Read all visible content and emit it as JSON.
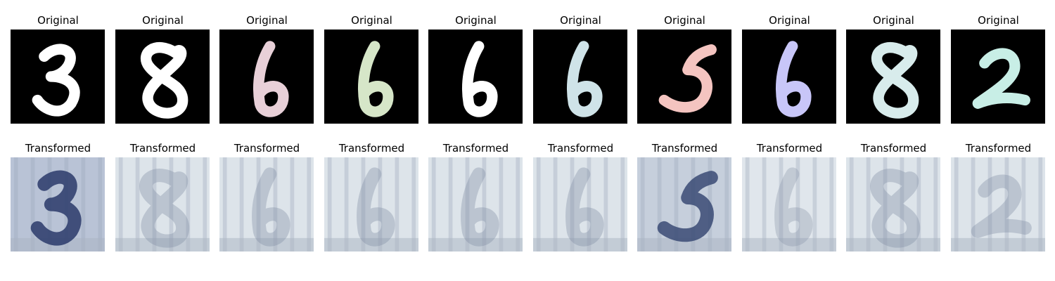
{
  "rows": [
    {
      "title": "Original"
    },
    {
      "title": "Transformed"
    }
  ],
  "digits": [
    "3",
    "8",
    "6",
    "6",
    "6",
    "6",
    "5",
    "6",
    "8",
    "2"
  ],
  "originals": [
    {
      "digit": "3",
      "color": "#ffffff"
    },
    {
      "digit": "8",
      "color": "#ffffff"
    },
    {
      "digit": "6",
      "color": "#e8d0d8"
    },
    {
      "digit": "6",
      "color": "#d6e6c8"
    },
    {
      "digit": "6",
      "color": "#ffffff"
    },
    {
      "digit": "6",
      "color": "#cfe3e8"
    },
    {
      "digit": "5",
      "color": "#f4c4c0"
    },
    {
      "digit": "6",
      "color": "#c8c6f8"
    },
    {
      "digit": "8",
      "color": "#d8ecec"
    },
    {
      "digit": "2",
      "color": "#c8eee6"
    }
  ],
  "transformed": [
    {
      "digit": "3",
      "tint": "#2a3a6a",
      "bg": "#b9c3d6"
    },
    {
      "digit": "8",
      "tint": "#7c8aa0",
      "bg": "#dde4ea"
    },
    {
      "digit": "6",
      "tint": "#7c8aa0",
      "bg": "#dde4ea"
    },
    {
      "digit": "6",
      "tint": "#7c8aa0",
      "bg": "#dde4ea"
    },
    {
      "digit": "6",
      "tint": "#7c8aa0",
      "bg": "#dde4ea"
    },
    {
      "digit": "6",
      "tint": "#7c8aa0",
      "bg": "#dde4ea"
    },
    {
      "digit": "5",
      "tint": "#3a4a74",
      "bg": "#c6cfdc"
    },
    {
      "digit": "6",
      "tint": "#8a96a8",
      "bg": "#e0e6ec"
    },
    {
      "digit": "8",
      "tint": "#7c8aa0",
      "bg": "#dde4ea"
    },
    {
      "digit": "2",
      "tint": "#7c8aa0",
      "bg": "#dde4ea"
    }
  ]
}
